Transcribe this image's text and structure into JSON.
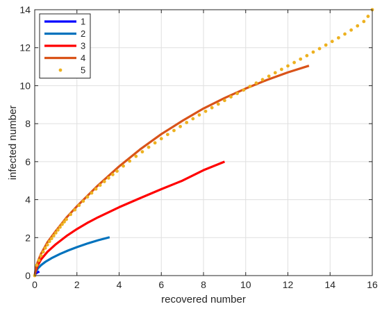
{
  "chart_data": {
    "type": "line",
    "xlabel": "recovered number",
    "ylabel": "infected number",
    "xlim": [
      0,
      16
    ],
    "ylim": [
      0,
      14
    ],
    "xticks": [
      0,
      2,
      4,
      6,
      8,
      10,
      12,
      14,
      16
    ],
    "yticks": [
      0,
      2,
      4,
      6,
      8,
      10,
      12,
      14
    ],
    "grid": true,
    "legend_position": "top-left",
    "series": [
      {
        "name": "1",
        "style": "solid",
        "color": "#0000ff",
        "x": [
          0,
          0.02,
          0.05,
          0.1,
          0.15,
          0.22
        ],
        "y": [
          0,
          0.06,
          0.1,
          0.15,
          0.18,
          0.21
        ]
      },
      {
        "name": "2",
        "style": "solid",
        "color": "#0072bd",
        "x": [
          0,
          0.05,
          0.15,
          0.3,
          0.5,
          0.8,
          1.2,
          1.6,
          2.0,
          2.5,
          3.0,
          3.55
        ],
        "y": [
          0,
          0.2,
          0.38,
          0.55,
          0.72,
          0.92,
          1.14,
          1.33,
          1.5,
          1.69,
          1.86,
          2.02
        ]
      },
      {
        "name": "3",
        "style": "solid",
        "color": "#ff0000",
        "x": [
          0,
          0.05,
          0.15,
          0.3,
          0.6,
          1.0,
          1.5,
          2.0,
          2.5,
          3.0,
          4.0,
          5.0,
          6.0,
          7.0,
          8.0,
          9.0
        ],
        "y": [
          0,
          0.28,
          0.55,
          0.85,
          1.25,
          1.65,
          2.08,
          2.45,
          2.78,
          3.07,
          3.6,
          4.08,
          4.55,
          5.0,
          5.55,
          6.0
        ]
      },
      {
        "name": "4",
        "style": "solid",
        "color": "#d95319",
        "x": [
          0,
          0.05,
          0.15,
          0.3,
          0.6,
          1.0,
          1.5,
          2.0,
          3.0,
          4.0,
          5.0,
          6.0,
          7.0,
          8.0,
          9.0,
          10.0,
          11.0,
          12.0,
          13.0
        ],
        "y": [
          0,
          0.4,
          0.75,
          1.15,
          1.75,
          2.35,
          3.05,
          3.65,
          4.75,
          5.75,
          6.65,
          7.45,
          8.15,
          8.8,
          9.35,
          9.85,
          10.3,
          10.7,
          11.05
        ]
      },
      {
        "name": "5",
        "style": "dotted",
        "color": "#edb120",
        "x": [
          0,
          0.1,
          0.2,
          0.3,
          0.4,
          0.5,
          0.6,
          0.7,
          0.8,
          0.9,
          1.0,
          1.1,
          1.2,
          1.3,
          1.4,
          1.5,
          1.7,
          1.9,
          2.1,
          2.3,
          2.5,
          2.7,
          2.9,
          3.1,
          3.3,
          3.5,
          3.7,
          3.9,
          4.2,
          4.5,
          4.8,
          5.1,
          5.4,
          5.7,
          6.0,
          6.3,
          6.6,
          6.9,
          7.2,
          7.5,
          7.8,
          8.1,
          8.4,
          8.7,
          9.0,
          9.3,
          9.6,
          9.9,
          10.2,
          10.5,
          10.8,
          11.1,
          11.4,
          11.7,
          12.0,
          12.3,
          12.6,
          12.9,
          13.2,
          13.5,
          13.8,
          14.1,
          14.4,
          14.7,
          15.0,
          15.3,
          15.6,
          15.8,
          16.0
        ],
        "y": [
          0,
          0.55,
          0.8,
          1.05,
          1.25,
          1.45,
          1.62,
          1.8,
          1.95,
          2.1,
          2.25,
          2.4,
          2.55,
          2.7,
          2.83,
          2.96,
          3.22,
          3.46,
          3.7,
          3.92,
          4.14,
          4.35,
          4.56,
          4.76,
          4.95,
          5.14,
          5.32,
          5.5,
          5.77,
          6.03,
          6.28,
          6.52,
          6.76,
          6.99,
          7.21,
          7.43,
          7.64,
          7.85,
          8.06,
          8.26,
          8.46,
          8.65,
          8.84,
          9.03,
          9.22,
          9.41,
          9.59,
          9.77,
          9.96,
          10.14,
          10.32,
          10.5,
          10.68,
          10.86,
          11.04,
          11.22,
          11.4,
          11.58,
          11.77,
          11.95,
          12.14,
          12.33,
          12.52,
          12.72,
          12.93,
          13.15,
          13.38,
          13.65,
          14.0
        ]
      }
    ]
  }
}
